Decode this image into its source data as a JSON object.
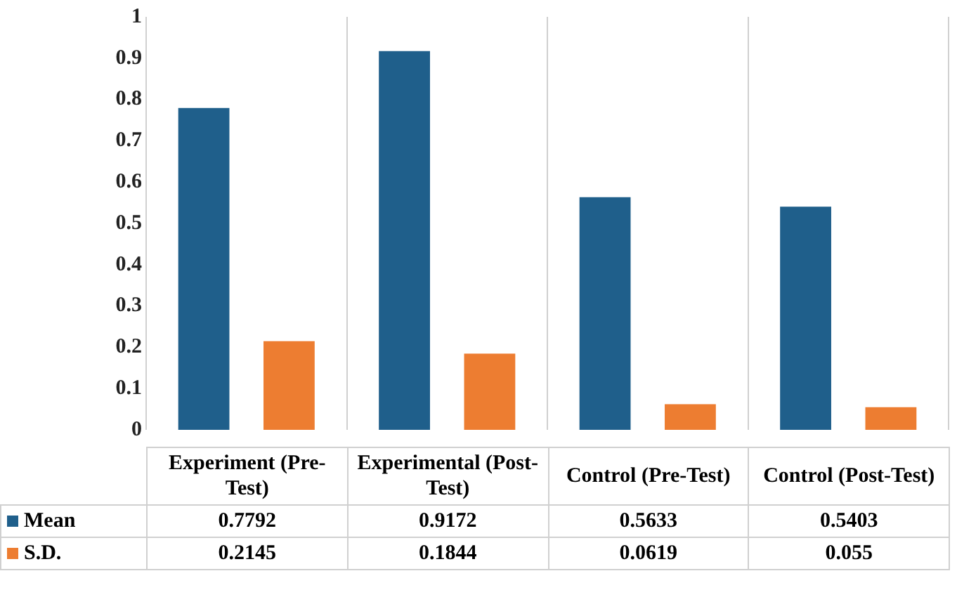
{
  "chart_data": {
    "type": "bar",
    "categories": [
      "Experiment (Pre-Test)",
      "Experimental (Post-Test)",
      "Control (Pre-Test)",
      "Control (Post-Test)"
    ],
    "series": [
      {
        "name": "Mean",
        "color": "#1f5f8b",
        "values": [
          0.7792,
          0.9172,
          0.5633,
          0.5403
        ]
      },
      {
        "name": "S.D.",
        "color": "#ed7d31",
        "values": [
          0.2145,
          0.1844,
          0.0619,
          0.055
        ]
      }
    ],
    "ylim": [
      0,
      1
    ],
    "yticks": [
      0,
      0.1,
      0.2,
      0.3,
      0.4,
      0.5,
      0.6,
      0.7,
      0.8,
      0.9,
      1
    ],
    "grid": "x",
    "legend": "bottom",
    "data_labels": true
  }
}
